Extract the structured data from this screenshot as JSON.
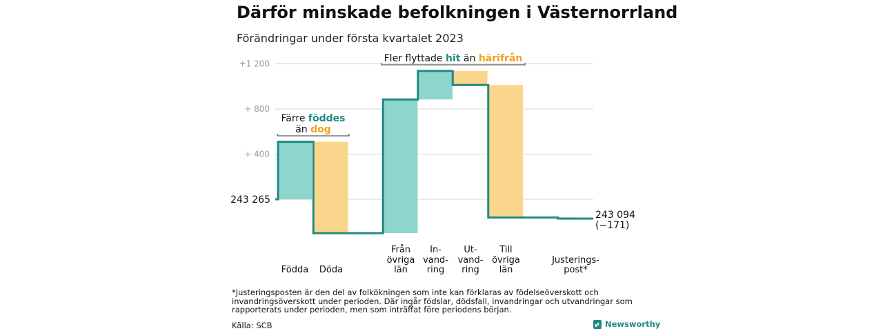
{
  "title": "Därför minskade befolkningen i Västernorrland",
  "subtitle": "Förändringar under första kvartalet 2023",
  "chart_data": {
    "type": "waterfall",
    "start": {
      "value": 243265,
      "label": "243 265"
    },
    "end": {
      "value": 243094,
      "label": "243 094",
      "change_label": "(−171)"
    },
    "y_axis": {
      "range_relative": [
        0,
        1200
      ],
      "ticks": [
        {
          "value": 400,
          "label": "+ 400"
        },
        {
          "value": 800,
          "label": "+ 800"
        },
        {
          "value": 1200,
          "label": "+1 200"
        }
      ]
    },
    "steps": [
      {
        "lines": [
          "",
          "",
          "Födda"
        ],
        "value": 510,
        "kind": "increase"
      },
      {
        "lines": [
          "",
          "",
          "Döda"
        ],
        "value": -810,
        "kind": "decrease"
      },
      {
        "lines": [
          "Från",
          "övriga",
          "län"
        ],
        "value": 1185,
        "kind": "increase"
      },
      {
        "lines": [
          "In-",
          "vand-",
          "ring"
        ],
        "value": 253,
        "kind": "increase"
      },
      {
        "lines": [
          "Ut-",
          "vand-",
          "ring"
        ],
        "value": -125,
        "kind": "decrease"
      },
      {
        "lines": [
          "Till",
          "övriga",
          "län"
        ],
        "value": -1174,
        "kind": "decrease"
      },
      {
        "lines": [
          "",
          "Justerings-",
          "post*"
        ],
        "value": -10,
        "kind": "adjustment"
      }
    ],
    "annotations": [
      {
        "lines": [
          [
            {
              "text": "Färre ",
              "kind": "plain"
            },
            {
              "text": "föddes",
              "kind": "increase"
            }
          ],
          [
            {
              "text": "än ",
              "kind": "plain"
            },
            {
              "text": "dog",
              "kind": "decrease"
            }
          ]
        ]
      },
      {
        "lines": [
          [
            {
              "text": "Fler flyttade ",
              "kind": "plain"
            },
            {
              "text": "hit",
              "kind": "increase"
            },
            {
              "text": " än ",
              "kind": "plain"
            },
            {
              "text": "härifrån",
              "kind": "decrease"
            }
          ]
        ]
      }
    ],
    "colors": {
      "increase": "#8dd5cd",
      "decrease": "#fad58c",
      "adjustment": "#c8c8c8",
      "line": "#1f8a80",
      "increase_text": "#1f8a80",
      "decrease_text": "#f0a21a",
      "grid": "#d6d6d6",
      "tick": "#9a9a9a"
    }
  },
  "footnote": "*Justeringsposten är den del av folkökningen som inte kan förklaras av födelseöverskott och invandringsöverskott under perioden. Där ingår födslar, dödsfall, invandringar och utvandringar som rapporterats under perioden, men som inträffat före periodens början.",
  "source": "Källa: SCB",
  "brand": {
    "name": "Newsworthy",
    "icon": "bar-chart-icon"
  }
}
